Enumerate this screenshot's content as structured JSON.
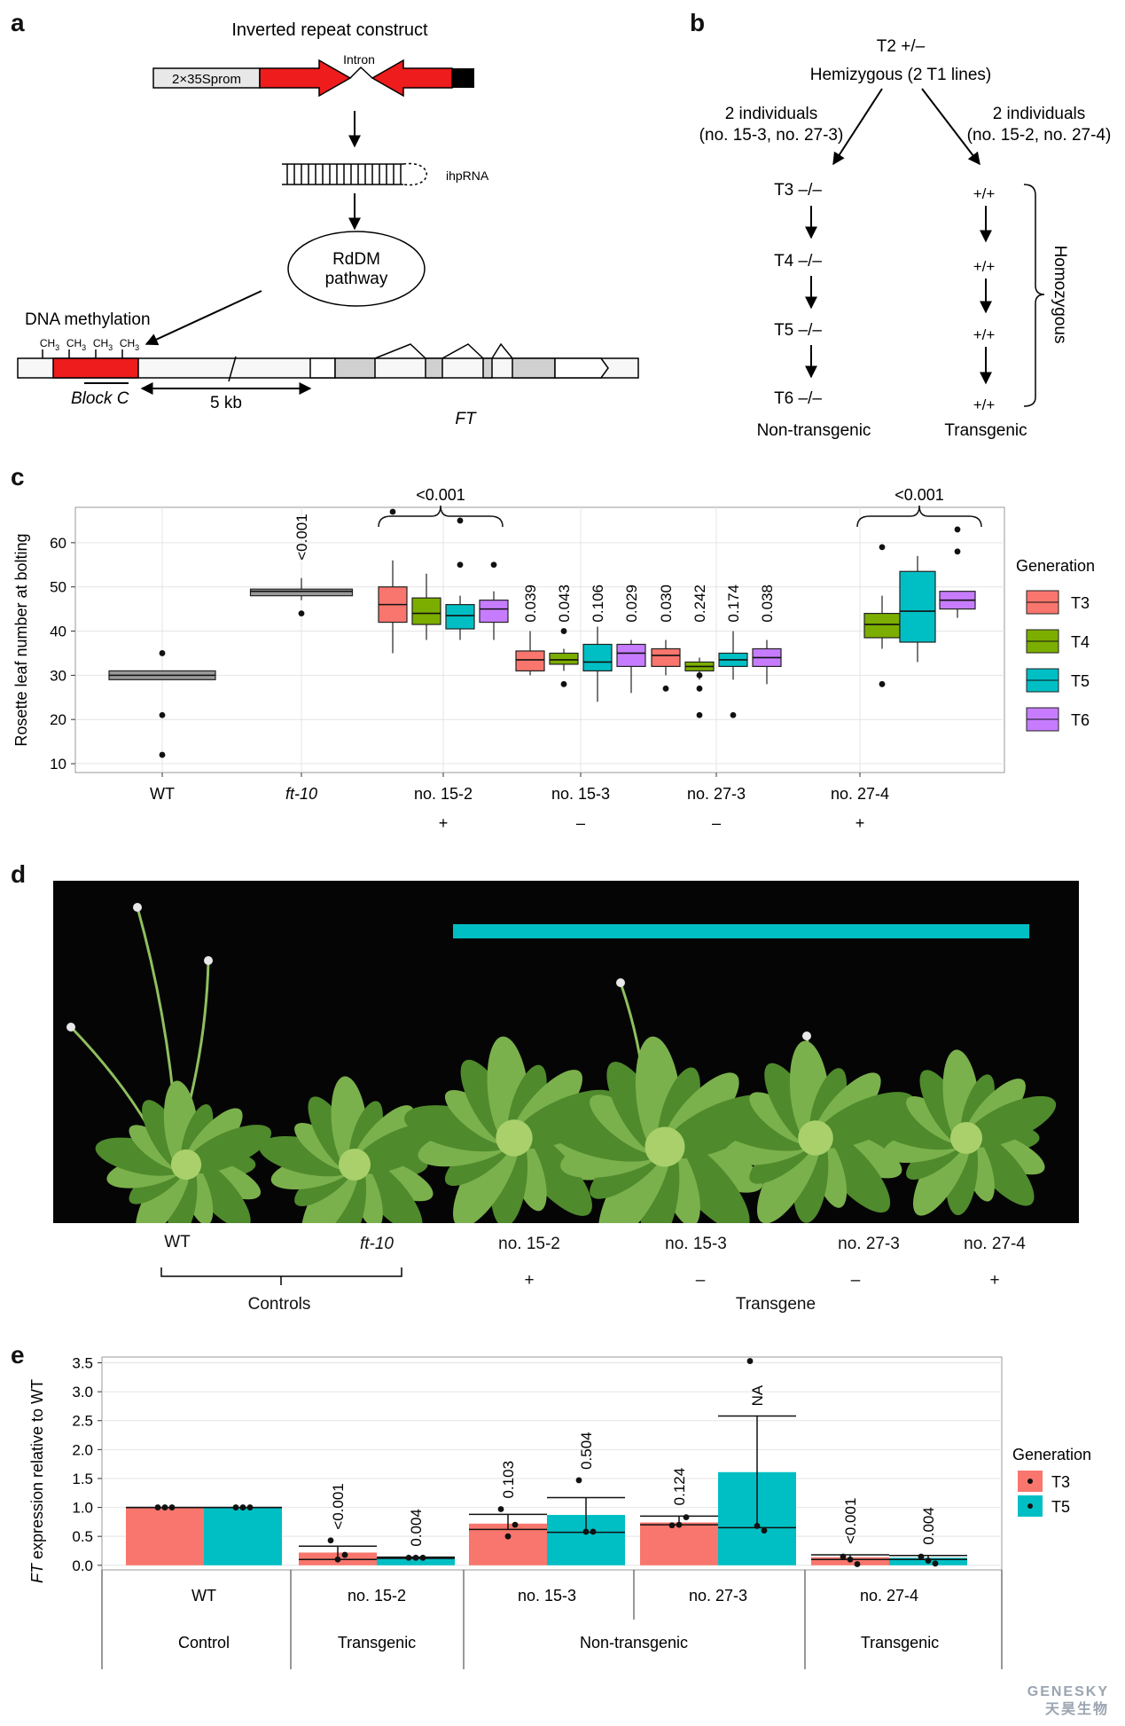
{
  "panel_letters": [
    "a",
    "b",
    "c",
    "d",
    "e"
  ],
  "panel_a": {
    "title": "Inverted repeat construct",
    "promoter": "2×35Sprom",
    "intron": "Intron",
    "hairpin": "ihpRNA",
    "pathway_line1": "RdDM",
    "pathway_line2": "pathway",
    "methylation_label": "DNA methylation",
    "methyl_group": "CH",
    "methyl_sub": "3",
    "block": "Block C",
    "distance": "5 kb",
    "gene": "FT"
  },
  "panel_b": {
    "top_line1": "T2 +/–",
    "top_line2": "Hemizygous (2 T1 lines)",
    "left_branch_line1": "2 individuals",
    "left_branch_line2": "(no. 15-3, no. 27-3)",
    "right_branch_line1": "2 individuals",
    "right_branch_line2": "(no. 15-2, no. 27-4)",
    "left_gens": [
      "T3 –/–",
      "T4 –/–",
      "T5 –/–",
      "T6 –/–"
    ],
    "right_gens": [
      "+/+",
      "+/+",
      "+/+",
      "+/+"
    ],
    "left_footer": "Non-transgenic",
    "right_footer": "Transgenic",
    "bracket_label": "Homozygous"
  },
  "chart_data": [
    {
      "type": "box",
      "panel": "c",
      "ylabel": "Rosette leaf number at bolting",
      "ylim": [
        8,
        68
      ],
      "yticks": [
        10,
        20,
        30,
        40,
        50,
        60
      ],
      "categories": [
        "WT",
        "ft-10",
        "no. 15-2",
        "no. 15-3",
        "no. 27-3",
        "no. 27-4"
      ],
      "category_signs": [
        "",
        "",
        "+",
        "–",
        "–",
        "+"
      ],
      "legend_title": "Generation",
      "legend_position": "right",
      "grid": true,
      "series_colors": {
        "T3": "#F8766D",
        "T4": "#7CAE00",
        "T5": "#00BFC4",
        "T6": "#C77CFF",
        "control": "#999999"
      },
      "boxes": [
        {
          "category": "WT",
          "series": "control",
          "q1": 29,
          "median": 30,
          "q3": 31,
          "wl": 29,
          "wh": 31,
          "outliers": [
            35,
            21,
            12
          ],
          "pval": ""
        },
        {
          "category": "ft-10",
          "series": "control",
          "q1": 48,
          "median": 49,
          "q3": 49.5,
          "wl": 47,
          "wh": 52,
          "outliers": [
            44
          ],
          "pval": "<0.001"
        },
        {
          "category": "no. 15-2",
          "series": "T3",
          "q1": 42,
          "median": 46,
          "q3": 50,
          "wl": 35,
          "wh": 56,
          "outliers": [
            67
          ],
          "pval": ""
        },
        {
          "category": "no. 15-2",
          "series": "T4",
          "q1": 41.5,
          "median": 44,
          "q3": 47.5,
          "wl": 38,
          "wh": 53,
          "outliers": [],
          "pval": ""
        },
        {
          "category": "no. 15-2",
          "series": "T5",
          "q1": 40.5,
          "median": 43.5,
          "q3": 46,
          "wl": 38,
          "wh": 48,
          "outliers": [
            65,
            55
          ],
          "pval": ""
        },
        {
          "category": "no. 15-2",
          "series": "T6",
          "q1": 42,
          "median": 45,
          "q3": 47,
          "wl": 38,
          "wh": 49,
          "outliers": [
            55
          ],
          "pval": ""
        },
        {
          "category": "no. 15-3",
          "series": "T3",
          "q1": 31,
          "median": 33.5,
          "q3": 35.5,
          "wl": 30,
          "wh": 40,
          "outliers": [],
          "pval": "0.039"
        },
        {
          "category": "no. 15-3",
          "series": "T4",
          "q1": 32.5,
          "median": 33.5,
          "q3": 35,
          "wl": 31,
          "wh": 36,
          "outliers": [
            40,
            28
          ],
          "pval": "0.043"
        },
        {
          "category": "no. 15-3",
          "series": "T5",
          "q1": 31,
          "median": 33,
          "q3": 37,
          "wl": 24,
          "wh": 41,
          "outliers": [],
          "pval": "0.106"
        },
        {
          "category": "no. 15-3",
          "series": "T6",
          "q1": 32,
          "median": 35,
          "q3": 37,
          "wl": 26,
          "wh": 38,
          "outliers": [],
          "pval": "0.029"
        },
        {
          "category": "no. 27-3",
          "series": "T3",
          "q1": 32,
          "median": 34.5,
          "q3": 36,
          "wl": 30,
          "wh": 38,
          "outliers": [
            27
          ],
          "pval": "0.030"
        },
        {
          "category": "no. 27-3",
          "series": "T4",
          "q1": 31,
          "median": 32,
          "q3": 33,
          "wl": 29,
          "wh": 34,
          "outliers": [
            30,
            27,
            21
          ],
          "pval": "0.242"
        },
        {
          "category": "no. 27-3",
          "series": "T5",
          "q1": 32,
          "median": 33.5,
          "q3": 35,
          "wl": 29,
          "wh": 40,
          "outliers": [
            21
          ],
          "pval": "0.174"
        },
        {
          "category": "no. 27-3",
          "series": "T6",
          "q1": 32,
          "median": 34,
          "q3": 36,
          "wl": 28,
          "wh": 38,
          "outliers": [],
          "pval": "0.038"
        },
        {
          "category": "no. 27-4",
          "series": "T4",
          "q1": 38.5,
          "median": 41.5,
          "q3": 44,
          "wl": 36,
          "wh": 48,
          "outliers": [
            59,
            28
          ],
          "pval": ""
        },
        {
          "category": "no. 27-4",
          "series": "T5",
          "q1": 37.5,
          "median": 44.5,
          "q3": 53.5,
          "wl": 33,
          "wh": 57,
          "outliers": [],
          "pval": ""
        },
        {
          "category": "no. 27-4",
          "series": "T6",
          "q1": 45,
          "median": 47,
          "q3": 49,
          "wl": 43,
          "wh": 49,
          "outliers": [
            63,
            58
          ],
          "pval": ""
        }
      ],
      "brackets": [
        {
          "category": "no. 15-2",
          "label": "<0.001"
        },
        {
          "category": "no. 27-4",
          "label": "<0.001"
        }
      ]
    },
    {
      "type": "bar",
      "panel": "e",
      "ylabel_italic": "FT",
      "ylabel_rest": " expression relative to WT",
      "ylim": [
        -0.08,
        3.6
      ],
      "yticks": [
        "0.0",
        "0.5",
        "1.0",
        "1.5",
        "2.0",
        "2.5",
        "3.0",
        "3.5"
      ],
      "categories": [
        "WT",
        "no. 15-2",
        "no. 15-3",
        "no. 27-3",
        "no. 27-4"
      ],
      "groups": [
        {
          "label": "Control",
          "span": [
            0,
            0
          ]
        },
        {
          "label": "Transgenic",
          "span": [
            1,
            1
          ]
        },
        {
          "label": "Non-transgenic",
          "span": [
            2,
            3
          ]
        },
        {
          "label": "Transgenic",
          "span": [
            4,
            4
          ]
        }
      ],
      "legend_title": "Generation",
      "legend_position": "right",
      "grid": true,
      "series": [
        {
          "name": "T3",
          "color": "#F8766D",
          "values": [
            1.0,
            0.22,
            0.72,
            0.74,
            0.14
          ],
          "err_low": [
            1.0,
            0.1,
            0.62,
            0.7,
            0.1
          ],
          "err_high": [
            1.0,
            0.33,
            0.88,
            0.85,
            0.18
          ],
          "points": [
            [
              1,
              1,
              1
            ],
            [
              0.43,
              0.1,
              0.18
            ],
            [
              0.97,
              0.5,
              0.7
            ],
            [
              0.69,
              0.7,
              0.83
            ],
            [
              0.15,
              0.1,
              0.02
            ]
          ],
          "pvals": [
            "",
            "<0.001",
            "0.103",
            "0.124",
            "<0.001"
          ]
        },
        {
          "name": "T5",
          "color": "#00BFC4",
          "values": [
            1.0,
            0.13,
            0.87,
            1.61,
            0.13
          ],
          "err_low": [
            1.0,
            0.12,
            0.57,
            0.65,
            0.1
          ],
          "err_high": [
            1.0,
            0.14,
            1.17,
            2.58,
            0.17
          ],
          "points": [
            [
              1,
              1,
              1
            ],
            [
              0.13,
              0.13,
              0.13
            ],
            [
              1.47,
              0.58,
              0.58
            ],
            [
              3.53,
              0.68,
              0.6
            ],
            [
              0.15,
              0.08,
              0.03
            ]
          ],
          "pvals": [
            "",
            "0.004",
            "0.504",
            "NA",
            "0.004"
          ]
        }
      ]
    }
  ],
  "panel_d": {
    "labels": [
      "WT",
      "ft-10",
      "no. 15-2",
      "no. 15-3",
      "no. 27-3",
      "no. 27-4"
    ],
    "signs": [
      "+",
      "–",
      "–",
      "+"
    ],
    "controls": "Controls",
    "transgene": "Transgene",
    "bar_color": "#00BFC4"
  },
  "watermark": {
    "line1": "GENESKY",
    "line2": "天昊生物"
  }
}
